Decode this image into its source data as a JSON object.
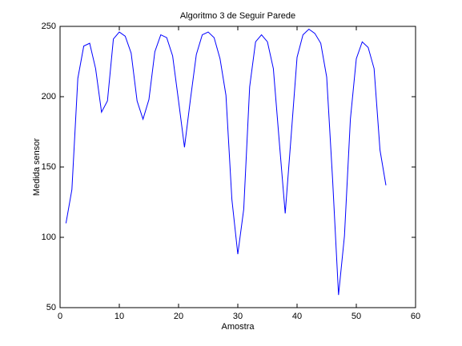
{
  "chart_data": {
    "type": "line",
    "title": "Algoritmo 3 de Seguir Parede",
    "xlabel": "Amostra",
    "ylabel": "Medida sensor",
    "x": [
      1,
      2,
      3,
      4,
      5,
      6,
      7,
      8,
      9,
      10,
      11,
      12,
      13,
      14,
      15,
      16,
      17,
      18,
      19,
      20,
      21,
      22,
      23,
      24,
      25,
      26,
      27,
      28,
      29,
      30,
      31,
      32,
      33,
      34,
      35,
      36,
      37,
      38,
      39,
      40,
      41,
      42,
      43,
      44,
      45,
      46,
      47,
      48,
      49,
      50,
      51,
      52,
      53,
      54,
      55
    ],
    "series": [
      {
        "name": "Medida sensor",
        "color": "#0000ff",
        "values": [
          110,
          134,
          213,
          236,
          238,
          220,
          189,
          197,
          241,
          246,
          243,
          231,
          197,
          184,
          198,
          232,
          244,
          242,
          229,
          197,
          164,
          198,
          230,
          244,
          246,
          242,
          227,
          201,
          127,
          88,
          120,
          207,
          239,
          244,
          239,
          220,
          168,
          117,
          172,
          228,
          244,
          248,
          245,
          238,
          214,
          141,
          59,
          101,
          184,
          227,
          239,
          235,
          220,
          162,
          137
        ]
      }
    ],
    "xlim": [
      0,
      60
    ],
    "ylim": [
      50,
      250
    ],
    "xticks": [
      0,
      10,
      20,
      30,
      40,
      50,
      60
    ],
    "yticks": [
      50,
      100,
      150,
      200,
      250
    ],
    "grid": false,
    "legend": false
  }
}
